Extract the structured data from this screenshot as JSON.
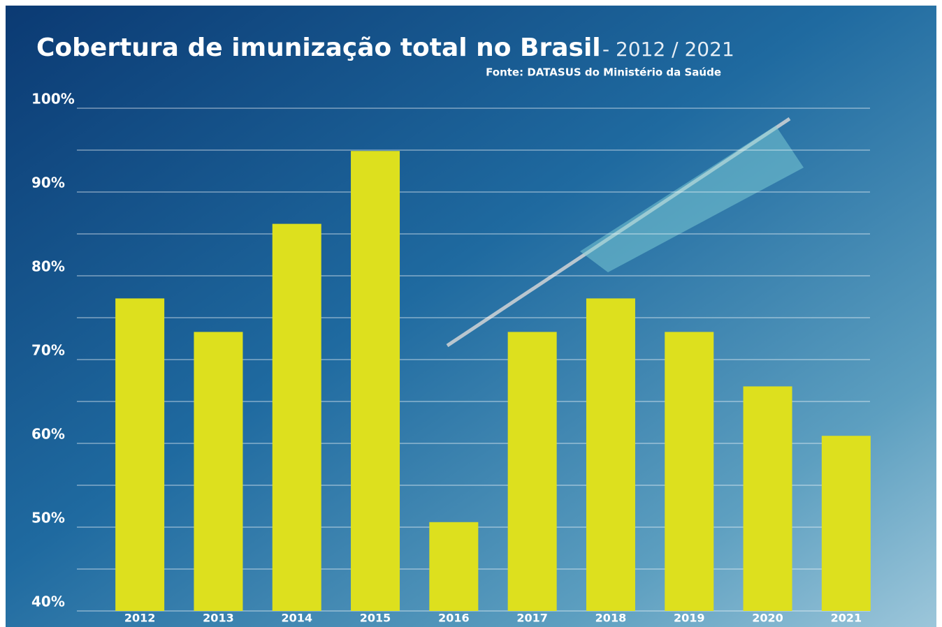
{
  "chart_data": {
    "type": "bar",
    "title": "Cobertura de imunização total no Brasil",
    "subtitle": "- 2012 / 2021",
    "source": "Fonte: DATASUS do Ministério da Saúde",
    "categories": [
      "2012",
      "2013",
      "2014",
      "2015",
      "2016",
      "2017",
      "2018",
      "2019",
      "2020",
      "2021"
    ],
    "values": [
      77.3,
      73.3,
      86.2,
      94.9,
      50.6,
      73.3,
      77.3,
      73.3,
      66.8,
      60.9
    ],
    "color": "#dde01e",
    "ylim": [
      40,
      100
    ],
    "yticks": [
      {
        "value": 40,
        "label": "40%"
      },
      {
        "value": 50,
        "label": "50%"
      },
      {
        "value": 60,
        "label": "60%"
      },
      {
        "value": 70,
        "label": "70%"
      },
      {
        "value": 80,
        "label": "80%"
      },
      {
        "value": 90,
        "label": "90%"
      },
      {
        "value": 100,
        "label": "100%"
      }
    ],
    "minor_grid": [
      45,
      55,
      65,
      75,
      85,
      95
    ],
    "grid": true
  }
}
